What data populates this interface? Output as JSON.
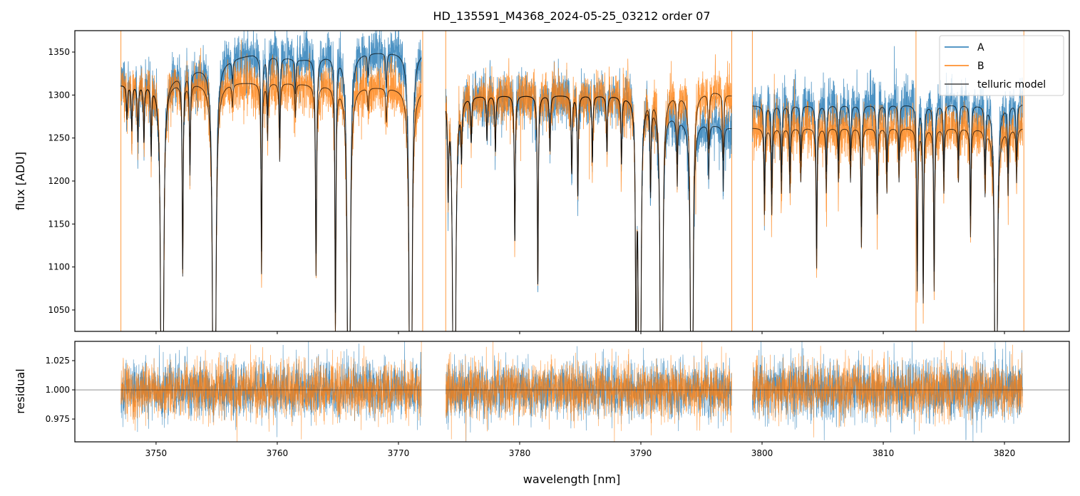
{
  "chart_data": {
    "type": "line",
    "title": "HD_135591_M4368_2024-05-25_03212  order 07",
    "xlabel": "wavelength [nm]",
    "xlim": [
      3743.3,
      3825.35
    ],
    "x_ticks": [
      3750,
      3760,
      3770,
      3780,
      3790,
      3800,
      3810,
      3820
    ],
    "top_panel": {
      "ylabel": "flux [ADU]",
      "ylim": [
        1025.1,
        1374.9
      ],
      "y_ticks": [
        1050,
        1100,
        1150,
        1200,
        1250,
        1300,
        1350
      ]
    },
    "bottom_panel": {
      "ylabel": "residual",
      "ylim": [
        0.9555,
        1.0415
      ],
      "y_ticks": [
        "0.975",
        "1.000",
        "1.025"
      ],
      "reference_line": 1.0,
      "noise_std": 0.012
    },
    "legend": {
      "placement": "top-right",
      "entries": [
        {
          "label": "A",
          "color": "#1f77b4"
        },
        {
          "label": "B",
          "color": "#ff7f0e"
        },
        {
          "label": "telluric model",
          "color": "#444444"
        }
      ]
    },
    "segments": [
      [
        3747.1,
        3771.9
      ],
      [
        3773.9,
        3797.5
      ],
      [
        3799.2,
        3821.5
      ]
    ],
    "continuum": {
      "A": [
        [
          3747.1,
          1312
        ],
        [
          3750,
          1315
        ],
        [
          3752,
          1325
        ],
        [
          3755,
          1340
        ],
        [
          3758,
          1348
        ],
        [
          3762,
          1342
        ],
        [
          3766,
          1350
        ],
        [
          3771.9,
          1352
        ],
        [
          3773.9,
          1300
        ],
        [
          3790,
          1300
        ],
        [
          3793,
          1275
        ],
        [
          3797.5,
          1262
        ],
        [
          3799.2,
          1288
        ],
        [
          3821.5,
          1290
        ]
      ],
      "B": [
        [
          3747.1,
          1312
        ],
        [
          3752,
          1316
        ],
        [
          3760,
          1315
        ],
        [
          3771.9,
          1308
        ],
        [
          3773.9,
          1300
        ],
        [
          3790,
          1300
        ],
        [
          3796,
          1305
        ],
        [
          3797.5,
          1300
        ],
        [
          3799.2,
          1262
        ],
        [
          3821.5,
          1262
        ]
      ]
    },
    "noise_std_adu": 15,
    "absorption_lines": [
      [
        3747.6,
        0.03,
        0.05
      ],
      [
        3748.0,
        0.04,
        0.05
      ],
      [
        3748.5,
        0.05,
        0.05
      ],
      [
        3749.0,
        0.05,
        0.05
      ],
      [
        3749.6,
        0.06,
        0.04
      ],
      [
        3750.5,
        0.9,
        0.07
      ],
      [
        3752.2,
        0.17,
        0.05
      ],
      [
        3752.8,
        0.08,
        0.05
      ],
      [
        3754.8,
        0.9,
        0.08
      ],
      [
        3756.3,
        0.02,
        0.05
      ],
      [
        3758.7,
        0.17,
        0.05
      ],
      [
        3759.2,
        0.05,
        0.05
      ],
      [
        3760.2,
        0.07,
        0.05
      ],
      [
        3761.5,
        0.03,
        0.05
      ],
      [
        3763.2,
        0.17,
        0.06
      ],
      [
        3764.8,
        0.22,
        0.05
      ],
      [
        3765.9,
        0.9,
        0.07
      ],
      [
        3767.5,
        0.02,
        0.05
      ],
      [
        3769.0,
        0.03,
        0.05
      ],
      [
        3771.0,
        0.9,
        0.07
      ],
      [
        3774.1,
        0.08,
        0.05
      ],
      [
        3774.6,
        0.9,
        0.07
      ],
      [
        3775.2,
        0.05,
        0.05
      ],
      [
        3776.0,
        0.04,
        0.05
      ],
      [
        3777.3,
        0.04,
        0.05
      ],
      [
        3778.0,
        0.05,
        0.05
      ],
      [
        3779.6,
        0.13,
        0.05
      ],
      [
        3781.5,
        0.17,
        0.05
      ],
      [
        3782.5,
        0.05,
        0.05
      ],
      [
        3784.3,
        0.07,
        0.05
      ],
      [
        3784.8,
        0.09,
        0.05
      ],
      [
        3786.0,
        0.06,
        0.05
      ],
      [
        3787.2,
        0.05,
        0.05
      ],
      [
        3788.4,
        0.06,
        0.05
      ],
      [
        3789.6,
        0.25,
        0.05
      ],
      [
        3789.9,
        0.9,
        0.06
      ],
      [
        3790.8,
        0.08,
        0.05
      ],
      [
        3791.7,
        0.9,
        0.06
      ],
      [
        3793.0,
        0.06,
        0.05
      ],
      [
        3794.2,
        0.9,
        0.06
      ],
      [
        3795.6,
        0.05,
        0.05
      ],
      [
        3796.8,
        0.06,
        0.05
      ],
      [
        3800.2,
        0.08,
        0.05
      ],
      [
        3800.8,
        0.08,
        0.05
      ],
      [
        3801.6,
        0.06,
        0.05
      ],
      [
        3802.3,
        0.06,
        0.05
      ],
      [
        3803.2,
        0.05,
        0.05
      ],
      [
        3804.5,
        0.13,
        0.05
      ],
      [
        3805.3,
        0.06,
        0.05
      ],
      [
        3806.3,
        0.05,
        0.05
      ],
      [
        3807.3,
        0.05,
        0.05
      ],
      [
        3808.2,
        0.11,
        0.05
      ],
      [
        3809.5,
        0.08,
        0.05
      ],
      [
        3810.3,
        0.06,
        0.05
      ],
      [
        3811.3,
        0.05,
        0.05
      ],
      [
        3812.8,
        0.15,
        0.05
      ],
      [
        3813.3,
        0.16,
        0.05
      ],
      [
        3814.2,
        0.15,
        0.05
      ],
      [
        3815.0,
        0.06,
        0.05
      ],
      [
        3816.2,
        0.05,
        0.05
      ],
      [
        3817.2,
        0.1,
        0.05
      ],
      [
        3818.4,
        0.06,
        0.05
      ],
      [
        3819.3,
        0.9,
        0.06
      ],
      [
        3820.3,
        0.06,
        0.05
      ],
      [
        3821.0,
        0.05,
        0.05
      ]
    ],
    "spike_lines": [
      3747.1,
      3772.0,
      3773.9,
      3797.5,
      3799.2,
      3812.7,
      3821.6
    ]
  }
}
